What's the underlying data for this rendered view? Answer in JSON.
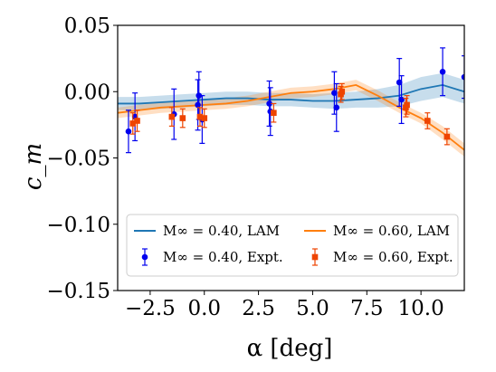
{
  "chart_data": {
    "type": "line",
    "xlabel": "α [deg]",
    "ylabel": "c_m",
    "xlim": [
      -4.0,
      12.0
    ],
    "ylim": [
      -0.15,
      0.05
    ],
    "xticks": [
      -2.5,
      0.0,
      2.5,
      5.0,
      7.5,
      10.0
    ],
    "xtick_labels": [
      "−2.5",
      "0.0",
      "2.5",
      "5.0",
      "7.5",
      "10.0"
    ],
    "yticks": [
      0.05,
      0.0,
      -0.05,
      -0.1,
      -0.15
    ],
    "ytick_labels": [
      "0.05",
      "0.00",
      "−0.05",
      "−0.10",
      "−0.15"
    ],
    "grid": false,
    "legend_position": "lower-center",
    "series": [
      {
        "name": "M∞ = 0.40, LAM",
        "kind": "line",
        "color": "#1f77b4",
        "x": [
          -4.0,
          -3.0,
          -2.0,
          -1.0,
          0.0,
          1.0,
          2.0,
          3.0,
          4.0,
          5.0,
          6.0,
          7.0,
          8.0,
          9.0,
          10.0,
          11.0,
          12.0
        ],
        "y": [
          -0.009,
          -0.009,
          -0.008,
          -0.007,
          -0.006,
          -0.005,
          -0.005,
          -0.006,
          -0.006,
          -0.007,
          -0.007,
          -0.006,
          -0.005,
          -0.003,
          0.002,
          0.005,
          0.0
        ],
        "band": [
          0.005,
          0.005,
          0.005,
          0.005,
          0.005,
          0.005,
          0.005,
          0.005,
          0.005,
          0.005,
          0.006,
          0.006,
          0.007,
          0.008,
          0.009,
          0.009,
          0.009
        ]
      },
      {
        "name": "M∞ = 0.60, LAM",
        "kind": "line",
        "color": "#ff7f0e",
        "x": [
          -4.0,
          -3.0,
          -2.0,
          -1.0,
          0.0,
          1.0,
          2.0,
          3.0,
          4.0,
          5.0,
          6.0,
          7.0,
          8.0,
          9.0,
          10.0,
          11.0,
          12.0
        ],
        "y": [
          -0.016,
          -0.014,
          -0.012,
          -0.011,
          -0.01,
          -0.009,
          -0.007,
          -0.004,
          -0.001,
          0.0,
          0.002,
          0.005,
          -0.003,
          -0.012,
          -0.02,
          -0.031,
          -0.044
        ],
        "band": [
          0.004,
          0.004,
          0.004,
          0.004,
          0.004,
          0.004,
          0.004,
          0.004,
          0.004,
          0.004,
          0.004,
          0.004,
          0.004,
          0.004,
          0.004,
          0.005,
          0.005
        ]
      },
      {
        "name": "M∞ = 0.40, Expt.",
        "kind": "errorbar",
        "color": "#0000ee",
        "marker": "circle",
        "x": [
          -3.5,
          -3.2,
          -1.4,
          -0.3,
          -0.25,
          -0.1,
          3.0,
          3.05,
          6.0,
          6.1,
          9.0,
          9.1,
          11.0,
          12.0
        ],
        "y": [
          -0.03,
          -0.019,
          -0.017,
          -0.01,
          -0.003,
          -0.021,
          -0.009,
          -0.015,
          -0.001,
          -0.012,
          0.007,
          -0.006,
          0.015,
          0.011
        ],
        "err": [
          0.016,
          0.018,
          0.019,
          0.019,
          0.018,
          0.018,
          0.017,
          0.018,
          0.016,
          0.018,
          0.018,
          0.018,
          0.018,
          0.016
        ]
      },
      {
        "name": "M∞ = 0.60, Expt.",
        "kind": "errorbar",
        "color": "#ee4400",
        "marker": "square",
        "x": [
          -3.3,
          -3.1,
          -1.5,
          -1.0,
          -0.2,
          0.0,
          3.2,
          6.3,
          6.35,
          9.3,
          9.35,
          10.3,
          11.2
        ],
        "y": [
          -0.024,
          -0.022,
          -0.019,
          -0.02,
          -0.019,
          -0.02,
          -0.016,
          -0.002,
          0.0,
          -0.012,
          -0.01,
          -0.022,
          -0.034
        ],
        "err": [
          0.008,
          0.008,
          0.007,
          0.007,
          0.007,
          0.007,
          0.007,
          0.006,
          0.006,
          0.007,
          0.007,
          0.006,
          0.006
        ]
      }
    ]
  },
  "legend": {
    "entries": [
      {
        "label": "M∞ = 0.40, LAM",
        "series": 0
      },
      {
        "label": "M∞ = 0.40, Expt.",
        "series": 2
      },
      {
        "label": "M∞ = 0.60, LAM",
        "series": 1
      },
      {
        "label": "M∞ = 0.60, Expt.",
        "series": 3
      }
    ]
  }
}
